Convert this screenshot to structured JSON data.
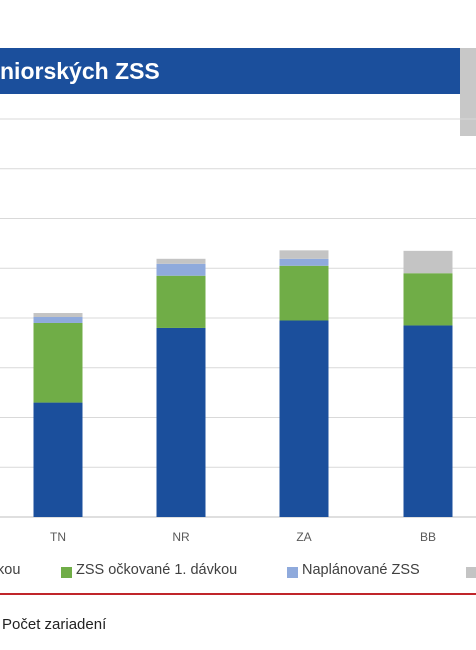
{
  "header": {
    "title": "niorských ZSS"
  },
  "chart_data": {
    "type": "bar",
    "stacked": true,
    "categories": [
      "TN",
      "NR",
      "ZA",
      "BB"
    ],
    "series": [
      {
        "name": "kou",
        "color": "#1b4f9c",
        "values": [
          23,
          38,
          39.5,
          38.5
        ]
      },
      {
        "name": "ZSS očkované 1. dávkou",
        "color": "#70ad47",
        "values": [
          16,
          10.5,
          11,
          10.5
        ]
      },
      {
        "name": "Naplánované ZSS",
        "color": "#8faadc",
        "values": [
          1.2,
          2.4,
          1.4,
          0
        ]
      },
      {
        "name": "",
        "color": "#c4c4c4",
        "values": [
          0.8,
          1,
          1.7,
          4.5
        ]
      }
    ],
    "ylim": [
      0,
      80
    ],
    "grid": true,
    "legend_position": "bottom"
  },
  "footer": {
    "text": "Počet zariadení"
  }
}
